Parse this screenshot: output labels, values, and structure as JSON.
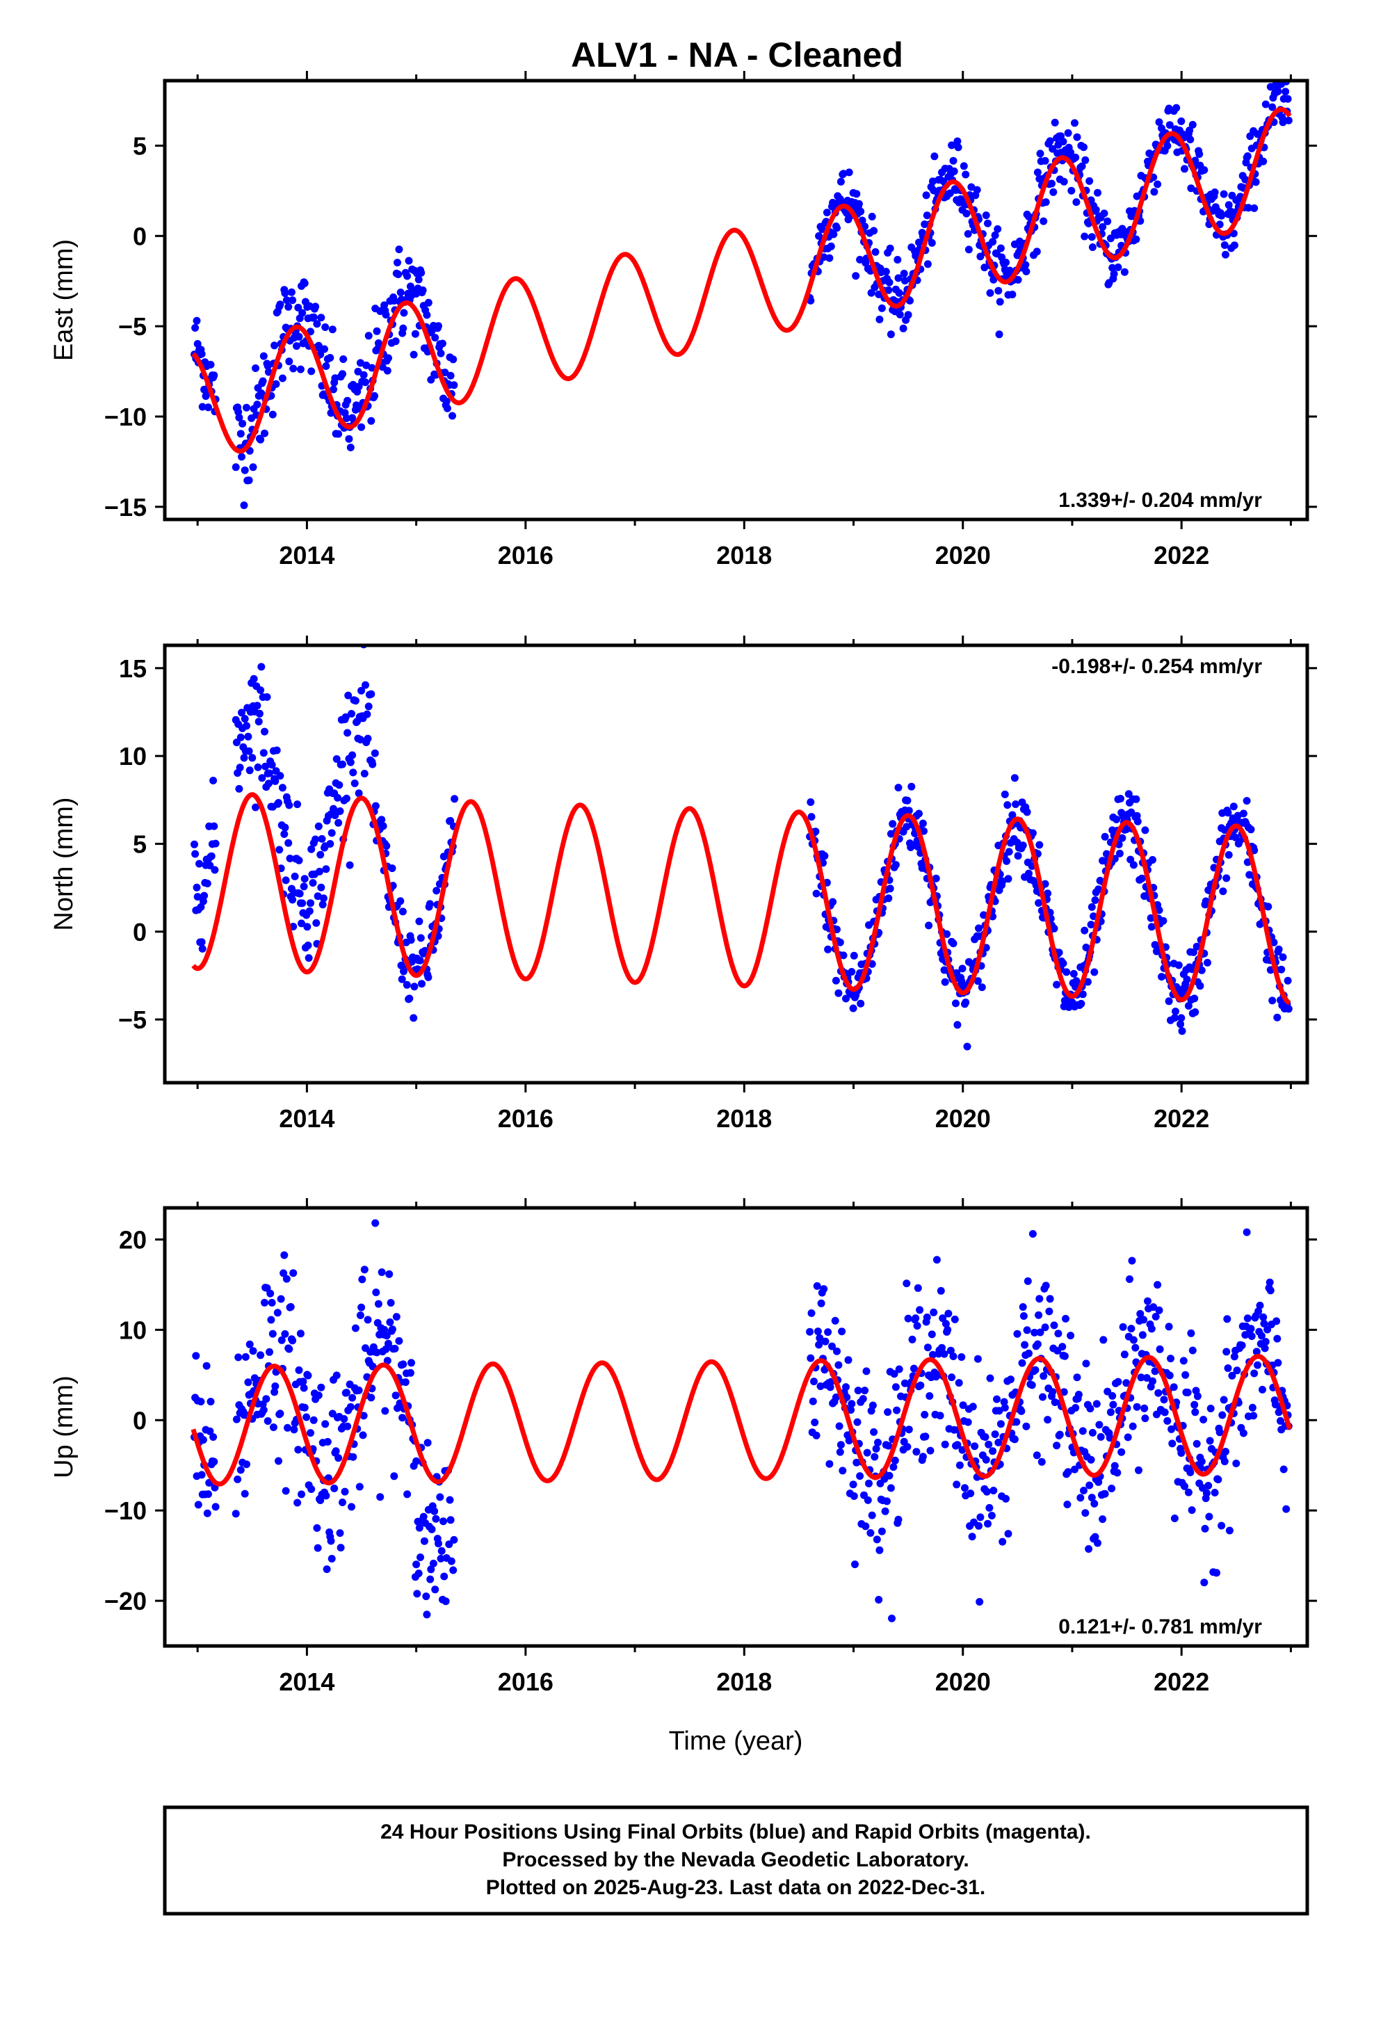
{
  "title": "ALV1  - NA - Cleaned",
  "xlabel": "Time (year)",
  "footer": {
    "line1": "24 Hour Positions Using Final Orbits (blue) and Rapid Orbits (magenta).",
    "line2": "Processed by the Nevada Geodetic Laboratory.",
    "line3": "Plotted on 2025-Aug-23. Last data on 2022-Dec-31."
  },
  "colors": {
    "points": "#0000ff",
    "model": "#ff0000",
    "axes": "#000000"
  },
  "chart_data": [
    {
      "type": "scatter",
      "name": "east",
      "ylabel": "East (mm)",
      "rate_label": "1.339+/- 0.204 mm/yr",
      "rate_position": "bottom-right",
      "xlim": [
        2012.7,
        2023.15
      ],
      "ylim": [
        -15.7,
        8.6
      ],
      "x_ticks": [
        2014,
        2016,
        2018,
        2020,
        2022
      ],
      "y_ticks": [
        -15,
        -10,
        -5,
        0,
        5
      ],
      "y_tick_labels": [
        "−15",
        "−10",
        "−5",
        "0",
        "5"
      ],
      "model": {
        "intercept": -9.35,
        "rate": 1.339,
        "ref_year": 2013.0,
        "amplitude": 3.1,
        "peak_year_fraction": 0.9
      },
      "data_segments": [
        {
          "start": 2012.97,
          "end": 2013.17,
          "sigma": 1.2,
          "offset": 0.4
        },
        {
          "start": 2013.35,
          "end": 2015.35,
          "sigma": 1.4,
          "offset": 0.6
        },
        {
          "start": 2018.6,
          "end": 2022.98,
          "sigma": 1.0,
          "offset": 0.3
        }
      ]
    },
    {
      "type": "scatter",
      "name": "north",
      "ylabel": "North (mm)",
      "rate_label": "-0.198+/- 0.254 mm/yr",
      "rate_position": "top-right",
      "xlim": [
        2012.7,
        2023.15
      ],
      "ylim": [
        -8.6,
        16.3
      ],
      "x_ticks": [
        2014,
        2016,
        2018,
        2020,
        2022
      ],
      "y_ticks": [
        -5,
        0,
        5,
        10,
        15
      ],
      "y_tick_labels": [
        "−5",
        "0",
        "5",
        "10",
        "15"
      ],
      "model": {
        "intercept": 2.9,
        "rate": -0.198,
        "ref_year": 2013.0,
        "amplitude": 5.0,
        "peak_year_fraction": 0.5
      },
      "data_segments": [
        {
          "start": 2012.97,
          "end": 2013.17,
          "sigma": 1.6,
          "offset": 5.0
        },
        {
          "start": 2013.35,
          "end": 2014.6,
          "sigma": 1.8,
          "offset": 4.5
        },
        {
          "start": 2014.6,
          "end": 2015.35,
          "sigma": 1.2,
          "offset": 0.2
        },
        {
          "start": 2018.6,
          "end": 2022.98,
          "sigma": 1.1,
          "offset": 0.0
        }
      ]
    },
    {
      "type": "scatter",
      "name": "up",
      "ylabel": "Up (mm)",
      "rate_label": "0.121+/- 0.781 mm/yr",
      "rate_position": "bottom-right",
      "xlim": [
        2012.7,
        2023.15
      ],
      "ylim": [
        -25.0,
        23.5
      ],
      "x_ticks": [
        2014,
        2016,
        2018,
        2020,
        2022
      ],
      "y_ticks": [
        -20,
        -10,
        0,
        10,
        20
      ],
      "y_tick_labels": [
        "−20",
        "−10",
        "0",
        "10",
        "20"
      ],
      "model": {
        "intercept": -0.6,
        "rate": 0.121,
        "ref_year": 2013.0,
        "amplitude": 6.5,
        "peak_year_fraction": 0.7
      },
      "data_segments": [
        {
          "start": 2012.97,
          "end": 2013.17,
          "sigma": 5.0,
          "offset": 0.0
        },
        {
          "start": 2013.35,
          "end": 2015.0,
          "sigma": 5.5,
          "offset": 2.0
        },
        {
          "start": 2015.0,
          "end": 2015.35,
          "sigma": 5.0,
          "offset": -8.0
        },
        {
          "start": 2018.6,
          "end": 2022.98,
          "sigma": 5.0,
          "offset": 0.5
        }
      ]
    }
  ]
}
